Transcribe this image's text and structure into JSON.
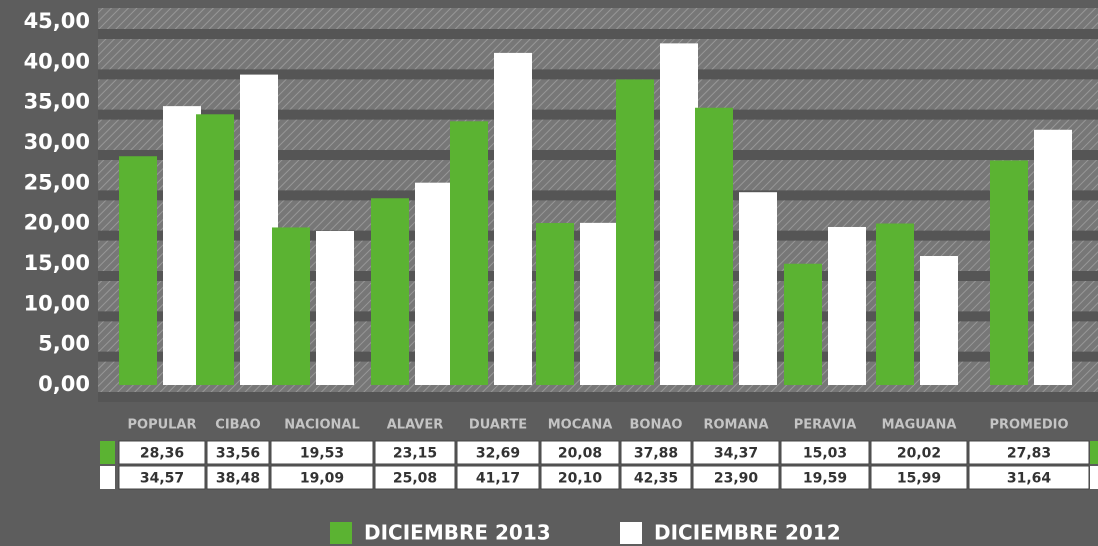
{
  "chart_data": {
    "type": "bar",
    "categories": [
      "POPULAR",
      "CIBAO",
      "NACIONAL",
      "ALAVER",
      "DUARTE",
      "MOCANA",
      "BONAO",
      "ROMANA",
      "PERAVIA",
      "MAGUANA",
      "PROMEDIO"
    ],
    "series": [
      {
        "name": "DICIEMBRE 2013",
        "color": "#5bb332",
        "values": [
          28.36,
          33.56,
          19.53,
          23.15,
          32.69,
          20.08,
          37.88,
          34.37,
          15.03,
          20.02,
          27.83
        ],
        "value_labels": [
          "28,36",
          "33,56",
          "19,53",
          "23,15",
          "32,69",
          "20,08",
          "37,88",
          "34,37",
          "15,03",
          "20,02",
          "27,83"
        ]
      },
      {
        "name": "DICIEMBRE 2012",
        "color": "#ffffff",
        "values": [
          34.57,
          38.48,
          19.09,
          25.08,
          41.17,
          20.1,
          42.35,
          23.9,
          19.59,
          15.99,
          31.64
        ],
        "value_labels": [
          "34,57",
          "38,48",
          "19,09",
          "25,08",
          "41,17",
          "20,10",
          "42,35",
          "23,90",
          "19,59",
          "15,99",
          "31,64"
        ]
      }
    ],
    "ylim": [
      0,
      45
    ],
    "yticks": [
      {
        "value": 0,
        "label": "0,00"
      },
      {
        "value": 5,
        "label": "5,00"
      },
      {
        "value": 10,
        "label": "10,00"
      },
      {
        "value": 15,
        "label": "15,00"
      },
      {
        "value": 20,
        "label": "20,00"
      },
      {
        "value": 25,
        "label": "25,00"
      },
      {
        "value": 30,
        "label": "30,00"
      },
      {
        "value": 35,
        "label": "35,00"
      },
      {
        "value": 40,
        "label": "40,00"
      },
      {
        "value": 45,
        "label": "45,00"
      }
    ],
    "grid": true
  }
}
